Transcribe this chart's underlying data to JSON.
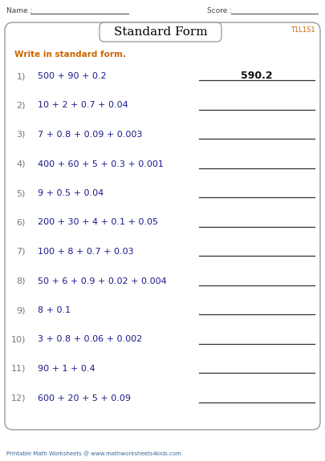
{
  "title": "Standard Form",
  "title_id": "T1L1S1",
  "instruction": "Write in standard form.",
  "name_label": "Name :",
  "score_label": "Score :",
  "footer": "Printable Math Worksheets @ www.mathworksheets4kids.com",
  "questions": [
    {
      "num": "1)",
      "expr": "500 + 90 + 0.2",
      "answer": "590.2"
    },
    {
      "num": "2)",
      "expr": "10 + 2 + 0.7 + 0.04",
      "answer": ""
    },
    {
      "num": "3)",
      "expr": "7 + 0.8 + 0.09 + 0.003",
      "answer": ""
    },
    {
      "num": "4)",
      "expr": "400 + 60 + 5 + 0.3 + 0.001",
      "answer": ""
    },
    {
      "num": "5)",
      "expr": "9 + 0.5 + 0.04",
      "answer": ""
    },
    {
      "num": "6)",
      "expr": "200 + 30 + 4 + 0.1 + 0.05",
      "answer": ""
    },
    {
      "num": "7)",
      "expr": "100 + 8 + 0.7 + 0.03",
      "answer": ""
    },
    {
      "num": "8)",
      "expr": "50 + 6 + 0.9 + 0.02 + 0.004",
      "answer": ""
    },
    {
      "num": "9)",
      "expr": "8 + 0.1",
      "answer": ""
    },
    {
      "num": "10)",
      "expr": "3 + 0.8 + 0.06 + 0.002",
      "answer": ""
    },
    {
      "num": "11)",
      "expr": "90 + 1 + 0.4",
      "answer": ""
    },
    {
      "num": "12)",
      "expr": "600 + 20 + 5 + 0.09",
      "answer": ""
    }
  ],
  "bg_color": "#ffffff",
  "box_edge_color": "#999999",
  "title_box_edge_color": "#888888",
  "title_text_color": "#000000",
  "instruction_color": "#cc6600",
  "number_color": "#777777",
  "expr_color": "#1a1a8c",
  "answer1_color": "#111111",
  "line_color": "#333333",
  "footer_color": "#336699",
  "title_id_color": "#cc6600"
}
